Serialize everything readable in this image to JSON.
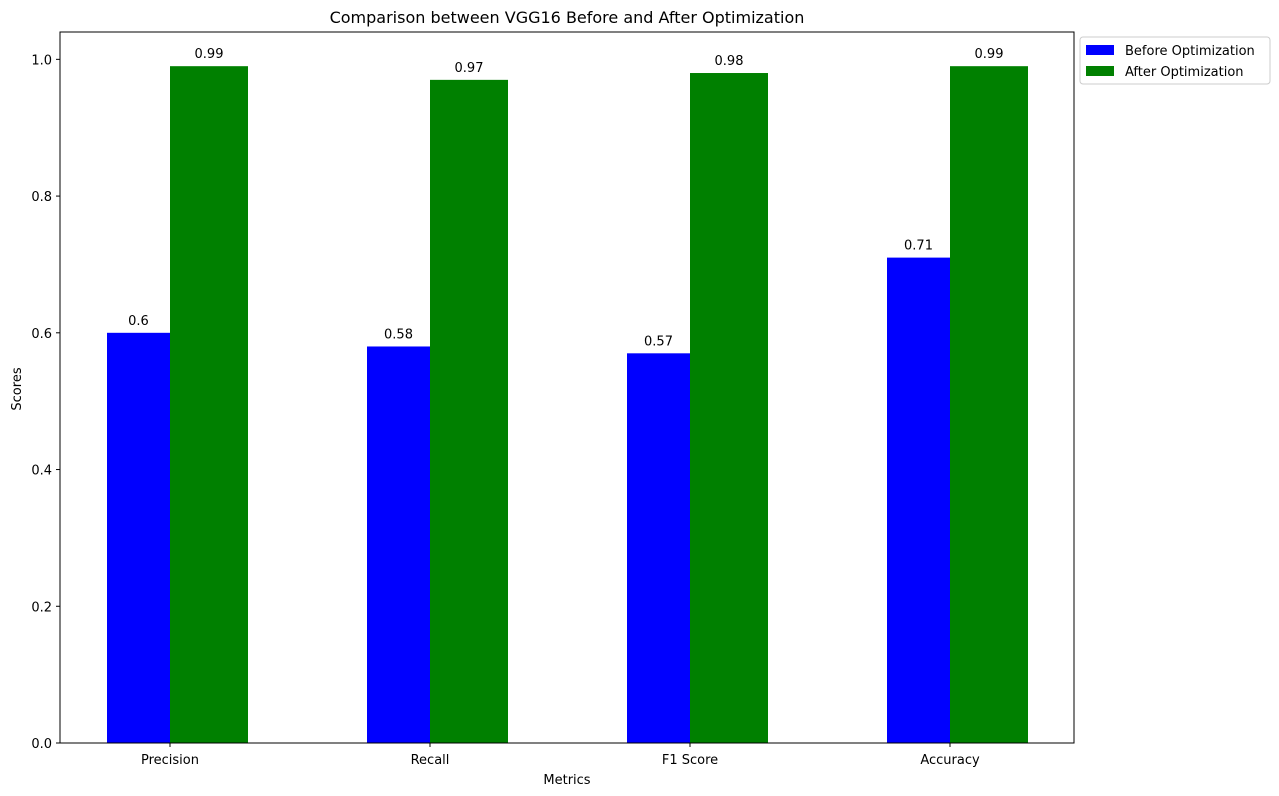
{
  "chart_data": {
    "type": "bar",
    "title": "Comparison between VGG16 Before and After Optimization",
    "xlabel": "Metrics",
    "ylabel": "Scores",
    "categories": [
      "Precision",
      "Recall",
      "F1 Score",
      "Accuracy"
    ],
    "series": [
      {
        "name": "Before Optimization",
        "color": "#0000ff",
        "values": [
          0.6,
          0.58,
          0.57,
          0.71
        ],
        "labels": [
          "0.6",
          "0.58",
          "0.57",
          "0.71"
        ]
      },
      {
        "name": "After Optimization",
        "color": "#008000",
        "values": [
          0.99,
          0.97,
          0.98,
          0.99
        ],
        "labels": [
          "0.99",
          "0.97",
          "0.98",
          "0.99"
        ]
      }
    ],
    "ylim": [
      0,
      1.04
    ],
    "yticks": [
      0.0,
      0.2,
      0.4,
      0.6,
      0.8,
      1.0
    ],
    "ytick_labels": [
      "0.0",
      "0.2",
      "0.4",
      "0.6",
      "0.8",
      "1.0"
    ],
    "grid": false,
    "legend_position": "outside-top-right"
  }
}
